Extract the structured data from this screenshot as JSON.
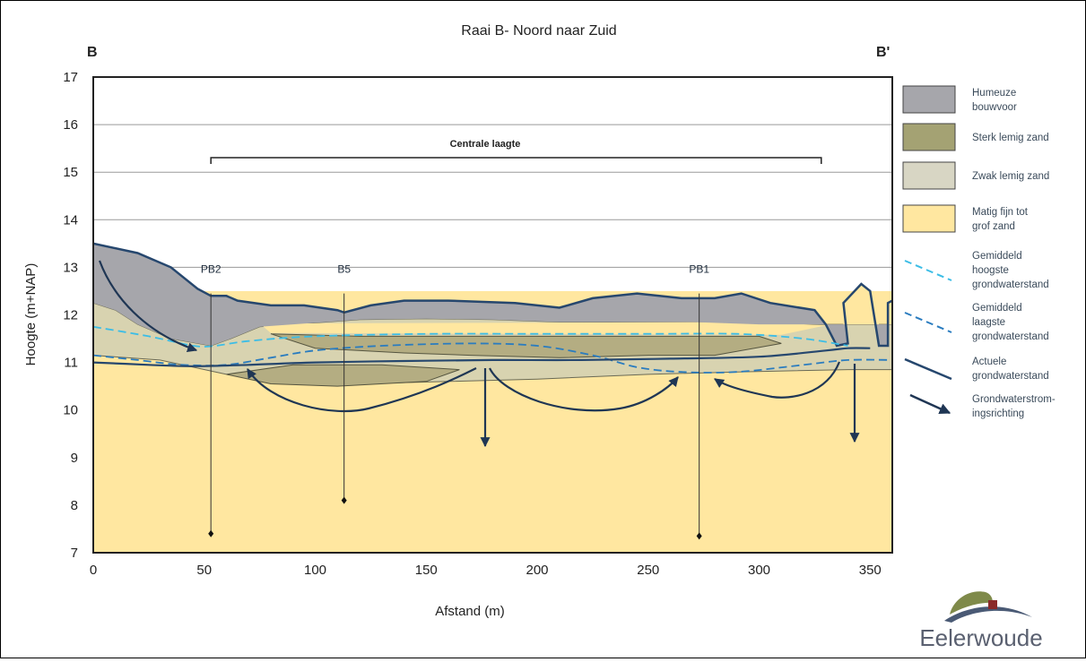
{
  "title": "Raai B- Noord naar Zuid",
  "corner_left": "B",
  "corner_right": "B'",
  "xlabel": "Afstand (m)",
  "ylabel": "Hoogte (m+NAP)",
  "annotation_centrale": "Centrale laagte",
  "boreholes": [
    {
      "label": "PB2",
      "x": 53,
      "bottom": 7.4
    },
    {
      "label": "B5",
      "x": 113,
      "bottom": 8.1
    },
    {
      "label": "PB1",
      "x": 273,
      "bottom": 7.35
    }
  ],
  "legend": [
    {
      "lines": [
        "Humeuze",
        "bouwvoor"
      ],
      "color": "#a6a6ab",
      "kind": "box"
    },
    {
      "lines": [
        "Sterk lemig zand"
      ],
      "color": "#a4a273",
      "kind": "box"
    },
    {
      "lines": [
        "Zwak lemig zand"
      ],
      "color": "#d8d6c4",
      "kind": "box"
    },
    {
      "lines": [
        "Matig fijn tot",
        "grof zand"
      ],
      "color": "#ffe7a0",
      "kind": "box"
    },
    {
      "lines": [
        "Gemiddeld",
        "hoogste",
        "grondwaterstand"
      ],
      "color": "#3cbde6",
      "kind": "dash"
    },
    {
      "lines": [
        "Gemiddeld",
        "laagste",
        "grondwaterstand"
      ],
      "color": "#2a7cbf",
      "kind": "dash"
    },
    {
      "lines": [
        "Actuele",
        "grondwaterstand"
      ],
      "color": "#26476e",
      "kind": "solid"
    },
    {
      "lines": [
        "Grondwaterstrom-",
        "ingsrichting"
      ],
      "color": "#1f3654",
      "kind": "arrow"
    }
  ],
  "chart_data": {
    "type": "area",
    "xlim": [
      0,
      360
    ],
    "ylim": [
      7,
      17
    ],
    "x_ticks": [
      0,
      50,
      100,
      150,
      200,
      250,
      300,
      350
    ],
    "y_ticks": [
      7,
      8,
      9,
      10,
      11,
      12,
      13,
      14,
      15,
      16,
      17
    ],
    "centrale_laagte": [
      53,
      328
    ],
    "surface": [
      [
        0,
        13.5
      ],
      [
        20,
        13.3
      ],
      [
        35,
        13.0
      ],
      [
        47,
        12.55
      ],
      [
        53,
        12.4
      ],
      [
        60,
        12.4
      ],
      [
        65,
        12.3
      ],
      [
        80,
        12.2
      ],
      [
        95,
        12.2
      ],
      [
        110,
        12.1
      ],
      [
        113,
        12.05
      ],
      [
        125,
        12.2
      ],
      [
        140,
        12.3
      ],
      [
        160,
        12.3
      ],
      [
        190,
        12.25
      ],
      [
        210,
        12.15
      ],
      [
        225,
        12.35
      ],
      [
        245,
        12.45
      ],
      [
        265,
        12.35
      ],
      [
        280,
        12.35
      ],
      [
        292,
        12.45
      ],
      [
        305,
        12.25
      ],
      [
        325,
        12.1
      ],
      [
        330,
        11.8
      ],
      [
        335,
        11.35
      ],
      [
        340,
        11.4
      ],
      [
        338,
        12.25
      ],
      [
        346,
        12.65
      ],
      [
        350,
        12.5
      ],
      [
        354,
        11.35
      ],
      [
        358,
        11.35
      ],
      [
        358,
        12.25
      ],
      [
        360,
        12.3
      ]
    ],
    "topsoil_base": [
      [
        0,
        12.25
      ],
      [
        10,
        12.1
      ],
      [
        20,
        11.8
      ],
      [
        35,
        11.5
      ],
      [
        53,
        11.35
      ],
      [
        62,
        11.5
      ],
      [
        75,
        11.75
      ],
      [
        90,
        11.8
      ],
      [
        120,
        11.9
      ],
      [
        150,
        11.92
      ],
      [
        180,
        11.9
      ],
      [
        210,
        11.85
      ],
      [
        240,
        11.85
      ],
      [
        270,
        11.85
      ],
      [
        300,
        11.8
      ],
      [
        330,
        11.8
      ],
      [
        338,
        11.8
      ],
      [
        354,
        11.8
      ],
      [
        360,
        11.8
      ]
    ],
    "sterk_lemig": [
      [
        80,
        11.6
      ],
      [
        120,
        11.55
      ],
      [
        170,
        11.55
      ],
      [
        240,
        11.55
      ],
      [
        300,
        11.55
      ],
      [
        310,
        11.4
      ],
      [
        280,
        11.15
      ],
      [
        250,
        11.15
      ],
      [
        210,
        11.1
      ],
      [
        170,
        11.15
      ],
      [
        140,
        11.2
      ],
      [
        100,
        11.3
      ]
    ],
    "zwak_base": [
      [
        0,
        11.15
      ],
      [
        30,
        11.05
      ],
      [
        60,
        10.75
      ],
      [
        90,
        10.55
      ],
      [
        120,
        10.55
      ],
      [
        160,
        10.6
      ],
      [
        200,
        10.65
      ],
      [
        250,
        10.75
      ],
      [
        290,
        10.8
      ],
      [
        340,
        10.85
      ],
      [
        360,
        10.85
      ]
    ],
    "sterk_lens": [
      [
        60,
        10.75
      ],
      [
        90,
        10.95
      ],
      [
        130,
        10.95
      ],
      [
        165,
        10.85
      ],
      [
        150,
        10.6
      ],
      [
        110,
        10.5
      ],
      [
        80,
        10.55
      ]
    ],
    "gw_high": [
      [
        0,
        11.75
      ],
      [
        25,
        11.55
      ],
      [
        45,
        11.35
      ],
      [
        55,
        11.35
      ],
      [
        70,
        11.45
      ],
      [
        100,
        11.55
      ],
      [
        150,
        11.6
      ],
      [
        200,
        11.6
      ],
      [
        250,
        11.6
      ],
      [
        290,
        11.6
      ],
      [
        320,
        11.5
      ],
      [
        340,
        11.35
      ]
    ],
    "gw_low": [
      [
        0,
        11.15
      ],
      [
        20,
        11.05
      ],
      [
        40,
        10.95
      ],
      [
        60,
        10.95
      ],
      [
        80,
        11.1
      ],
      [
        100,
        11.25
      ],
      [
        130,
        11.35
      ],
      [
        170,
        11.4
      ],
      [
        200,
        11.35
      ],
      [
        225,
        11.15
      ],
      [
        245,
        10.9
      ],
      [
        265,
        10.8
      ],
      [
        290,
        10.8
      ],
      [
        320,
        10.95
      ],
      [
        340,
        11.05
      ],
      [
        360,
        11.05
      ]
    ],
    "gw_actual": [
      [
        0,
        11.0
      ],
      [
        25,
        10.95
      ],
      [
        45,
        10.92
      ],
      [
        70,
        10.95
      ],
      [
        100,
        11.0
      ],
      [
        140,
        11.03
      ],
      [
        180,
        11.05
      ],
      [
        220,
        11.05
      ],
      [
        260,
        11.08
      ],
      [
        300,
        11.12
      ],
      [
        330,
        11.25
      ],
      [
        340,
        11.3
      ],
      [
        350,
        11.3
      ]
    ]
  }
}
